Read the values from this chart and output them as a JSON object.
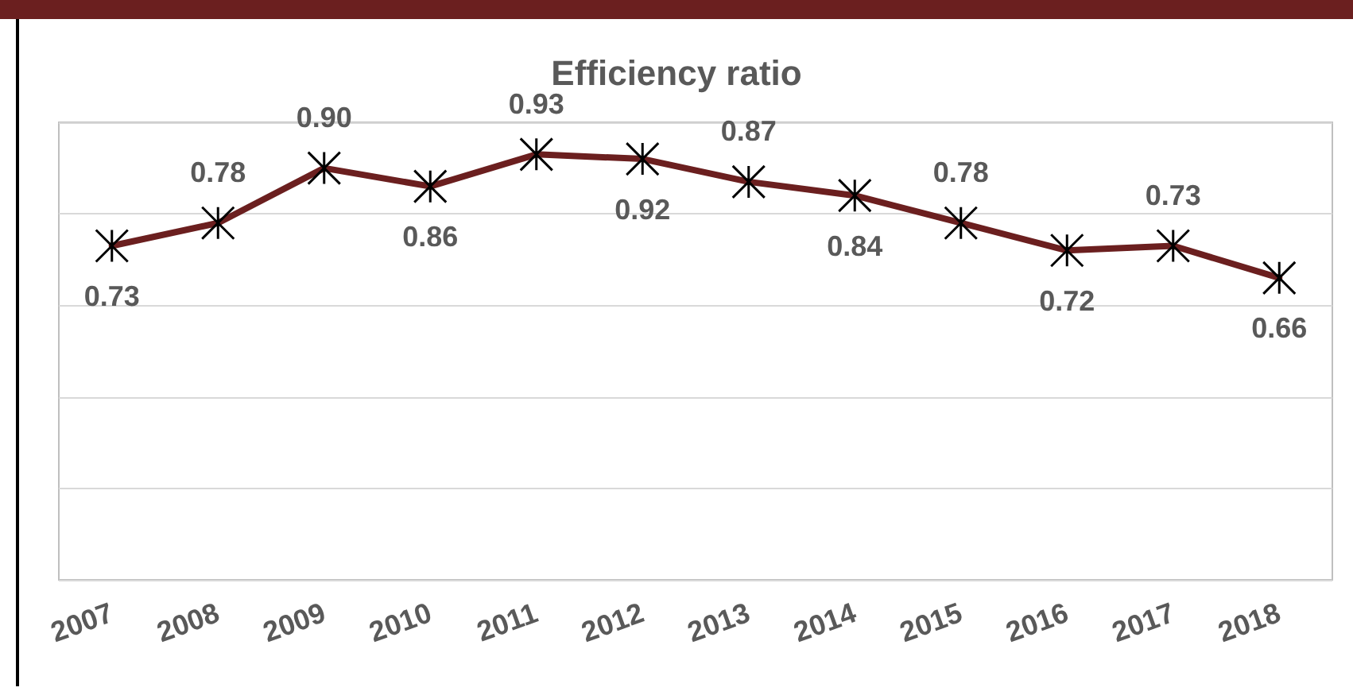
{
  "chart_data": {
    "type": "line",
    "title": "Efficiency ratio",
    "categories": [
      "2007",
      "2008",
      "2009",
      "2010",
      "2011",
      "2012",
      "2013",
      "2014",
      "2015",
      "2016",
      "2017",
      "2018"
    ],
    "series": [
      {
        "color": "#6b1f1f",
        "values": [
          0.73,
          0.78,
          0.9,
          0.86,
          0.93,
          0.92,
          0.87,
          0.84,
          0.78,
          0.72,
          0.73,
          0.66
        ],
        "value_labels": [
          "0.73",
          "0.78",
          "0.90",
          "0.86",
          "0.93",
          "0.92",
          "0.87",
          "0.84",
          "0.78",
          "0.72",
          "0.73",
          "0.66"
        ]
      }
    ],
    "ylim": [
      0,
      1
    ],
    "yticks": [
      {
        "value": 0,
        "label": null
      },
      {
        "value": 0.2,
        "label": null
      },
      {
        "value": 0.4,
        "label": null
      },
      {
        "value": 0.6,
        "label": null
      },
      {
        "value": 0.8,
        "label": null
      },
      {
        "value": 1,
        "label": null
      }
    ],
    "grid": "y",
    "tick_labels": "x",
    "marker": "cross",
    "line_style": "solid"
  }
}
